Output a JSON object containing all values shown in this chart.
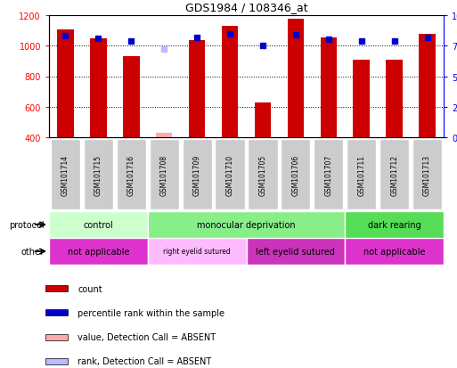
{
  "title": "GDS1984 / 108346_at",
  "samples": [
    "GSM101714",
    "GSM101715",
    "GSM101716",
    "GSM101708",
    "GSM101709",
    "GSM101710",
    "GSM101705",
    "GSM101706",
    "GSM101707",
    "GSM101711",
    "GSM101712",
    "GSM101713"
  ],
  "counts": [
    1105,
    1050,
    930,
    null,
    1035,
    1130,
    625,
    1175,
    1055,
    910,
    910,
    1075
  ],
  "ranks": [
    83,
    81,
    79,
    null,
    82,
    85,
    75,
    84,
    80,
    79,
    79,
    82
  ],
  "absent_counts": [
    null,
    null,
    null,
    430,
    null,
    null,
    null,
    null,
    null,
    null,
    null,
    null
  ],
  "absent_ranks": [
    null,
    null,
    null,
    72,
    null,
    null,
    null,
    null,
    null,
    null,
    null,
    null
  ],
  "bar_color": "#cc0000",
  "rank_color": "#0000cc",
  "absent_bar_color": "#ffaaaa",
  "absent_rank_color": "#bbbbff",
  "ylim_left": [
    400,
    1200
  ],
  "ylim_right": [
    0,
    100
  ],
  "bg_color": "#ffffff",
  "protocol_groups": [
    {
      "label": "control",
      "start": 0,
      "end": 3,
      "color": "#ccffcc"
    },
    {
      "label": "monocular deprivation",
      "start": 3,
      "end": 9,
      "color": "#88ee88"
    },
    {
      "label": "dark rearing",
      "start": 9,
      "end": 12,
      "color": "#55dd55"
    }
  ],
  "other_groups": [
    {
      "label": "not applicable",
      "start": 0,
      "end": 3,
      "color": "#dd33cc"
    },
    {
      "label": "right eyelid sutured",
      "start": 3,
      "end": 6,
      "color": "#ffbbff"
    },
    {
      "label": "left eyelid sutured",
      "start": 6,
      "end": 9,
      "color": "#cc33bb"
    },
    {
      "label": "not applicable",
      "start": 9,
      "end": 12,
      "color": "#dd33cc"
    }
  ],
  "legend_items": [
    {
      "label": "count",
      "color": "#cc0000"
    },
    {
      "label": "percentile rank within the sample",
      "color": "#0000cc"
    },
    {
      "label": "value, Detection Call = ABSENT",
      "color": "#ffaaaa"
    },
    {
      "label": "rank, Detection Call = ABSENT",
      "color": "#bbbbff"
    }
  ]
}
